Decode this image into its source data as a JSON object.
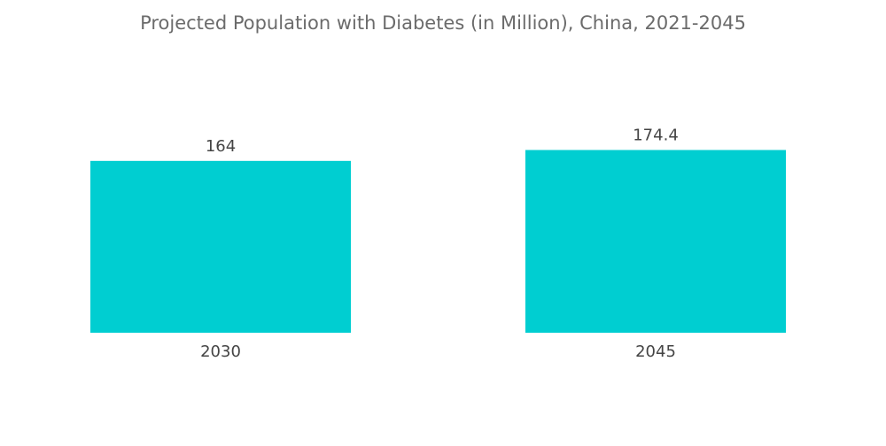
{
  "chart_data": {
    "type": "bar",
    "title": "Projected Population with Diabetes (in Million), China, 2021-2045",
    "categories": [
      "2030",
      "2045"
    ],
    "values": [
      164,
      174.4
    ],
    "value_labels": [
      "164",
      "174.4"
    ],
    "xlabel": "",
    "ylabel": "",
    "ylim": [
      0,
      200
    ],
    "grid": false,
    "legend": "none",
    "bar_color": "#00CED1"
  }
}
